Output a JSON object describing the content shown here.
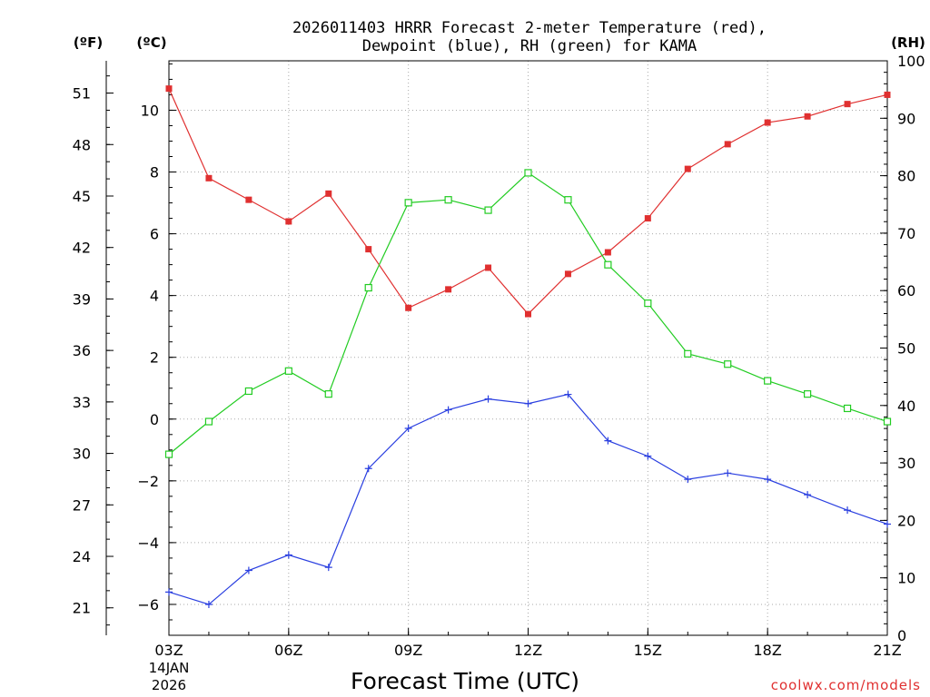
{
  "chart_data": {
    "type": "line",
    "title_line1": "2026011403 HRRR Forecast 2-meter Temperature (red),",
    "title_line2": "Dewpoint (blue), RH (green) for KAMA",
    "xlabel": "Forecast Time (UTC)",
    "unit_f": "(ºF)",
    "unit_c": "(ºC)",
    "unit_rh": "(RH)",
    "date_line1": "14JAN",
    "date_line2": "2026",
    "watermark": "coolwx.com/models",
    "hours": [
      3,
      4,
      5,
      6,
      7,
      8,
      9,
      10,
      11,
      12,
      13,
      14,
      15,
      16,
      17,
      18,
      19,
      20,
      21
    ],
    "x_ticks": [
      {
        "hour": 3,
        "label": "03Z"
      },
      {
        "hour": 6,
        "label": "06Z"
      },
      {
        "hour": 9,
        "label": "09Z"
      },
      {
        "hour": 12,
        "label": "12Z"
      },
      {
        "hour": 15,
        "label": "15Z"
      },
      {
        "hour": 18,
        "label": "18Z"
      },
      {
        "hour": 21,
        "label": "21Z"
      }
    ],
    "ylim_c": [
      -7,
      11.6
    ],
    "ylim_rh": [
      0,
      100
    ],
    "c_ticks": [
      -6,
      -4,
      -2,
      0,
      2,
      4,
      6,
      8,
      10
    ],
    "c_tick_labels": [
      "−6",
      "−4",
      "−2",
      "0",
      "2",
      "4",
      "6",
      "8",
      "10"
    ],
    "f_ticks": [
      21,
      24,
      27,
      30,
      33,
      36,
      39,
      42,
      45,
      48,
      51
    ],
    "rh_ticks": [
      0,
      10,
      20,
      30,
      40,
      50,
      60,
      70,
      80,
      90,
      100
    ],
    "series": [
      {
        "name": "Temperature",
        "unit": "C",
        "color": "#e03030",
        "marker": "filled-square",
        "values": [
          10.7,
          7.8,
          7.1,
          6.4,
          7.3,
          5.5,
          3.6,
          4.2,
          4.9,
          3.4,
          4.7,
          5.4,
          6.5,
          8.1,
          8.9,
          9.6,
          9.8,
          10.2,
          10.5
        ]
      },
      {
        "name": "Dewpoint",
        "unit": "C",
        "color": "#2a3fe0",
        "marker": "plus",
        "values": [
          -5.6,
          -6.0,
          -4.9,
          -4.4,
          -4.8,
          -1.6,
          -0.3,
          0.3,
          0.65,
          0.5,
          0.8,
          -0.7,
          -1.2,
          -1.95,
          -1.75,
          -1.95,
          -2.45,
          -2.95,
          -3.4
        ]
      },
      {
        "name": "RH",
        "unit": "%",
        "color": "#22cc22",
        "marker": "open-square",
        "values": [
          31.5,
          37.2,
          42.5,
          46.0,
          42.0,
          60.5,
          75.3,
          75.8,
          74.0,
          80.5,
          75.8,
          64.5,
          57.8,
          49.0,
          47.2,
          44.3,
          42.0,
          39.5,
          37.2
        ]
      }
    ]
  }
}
